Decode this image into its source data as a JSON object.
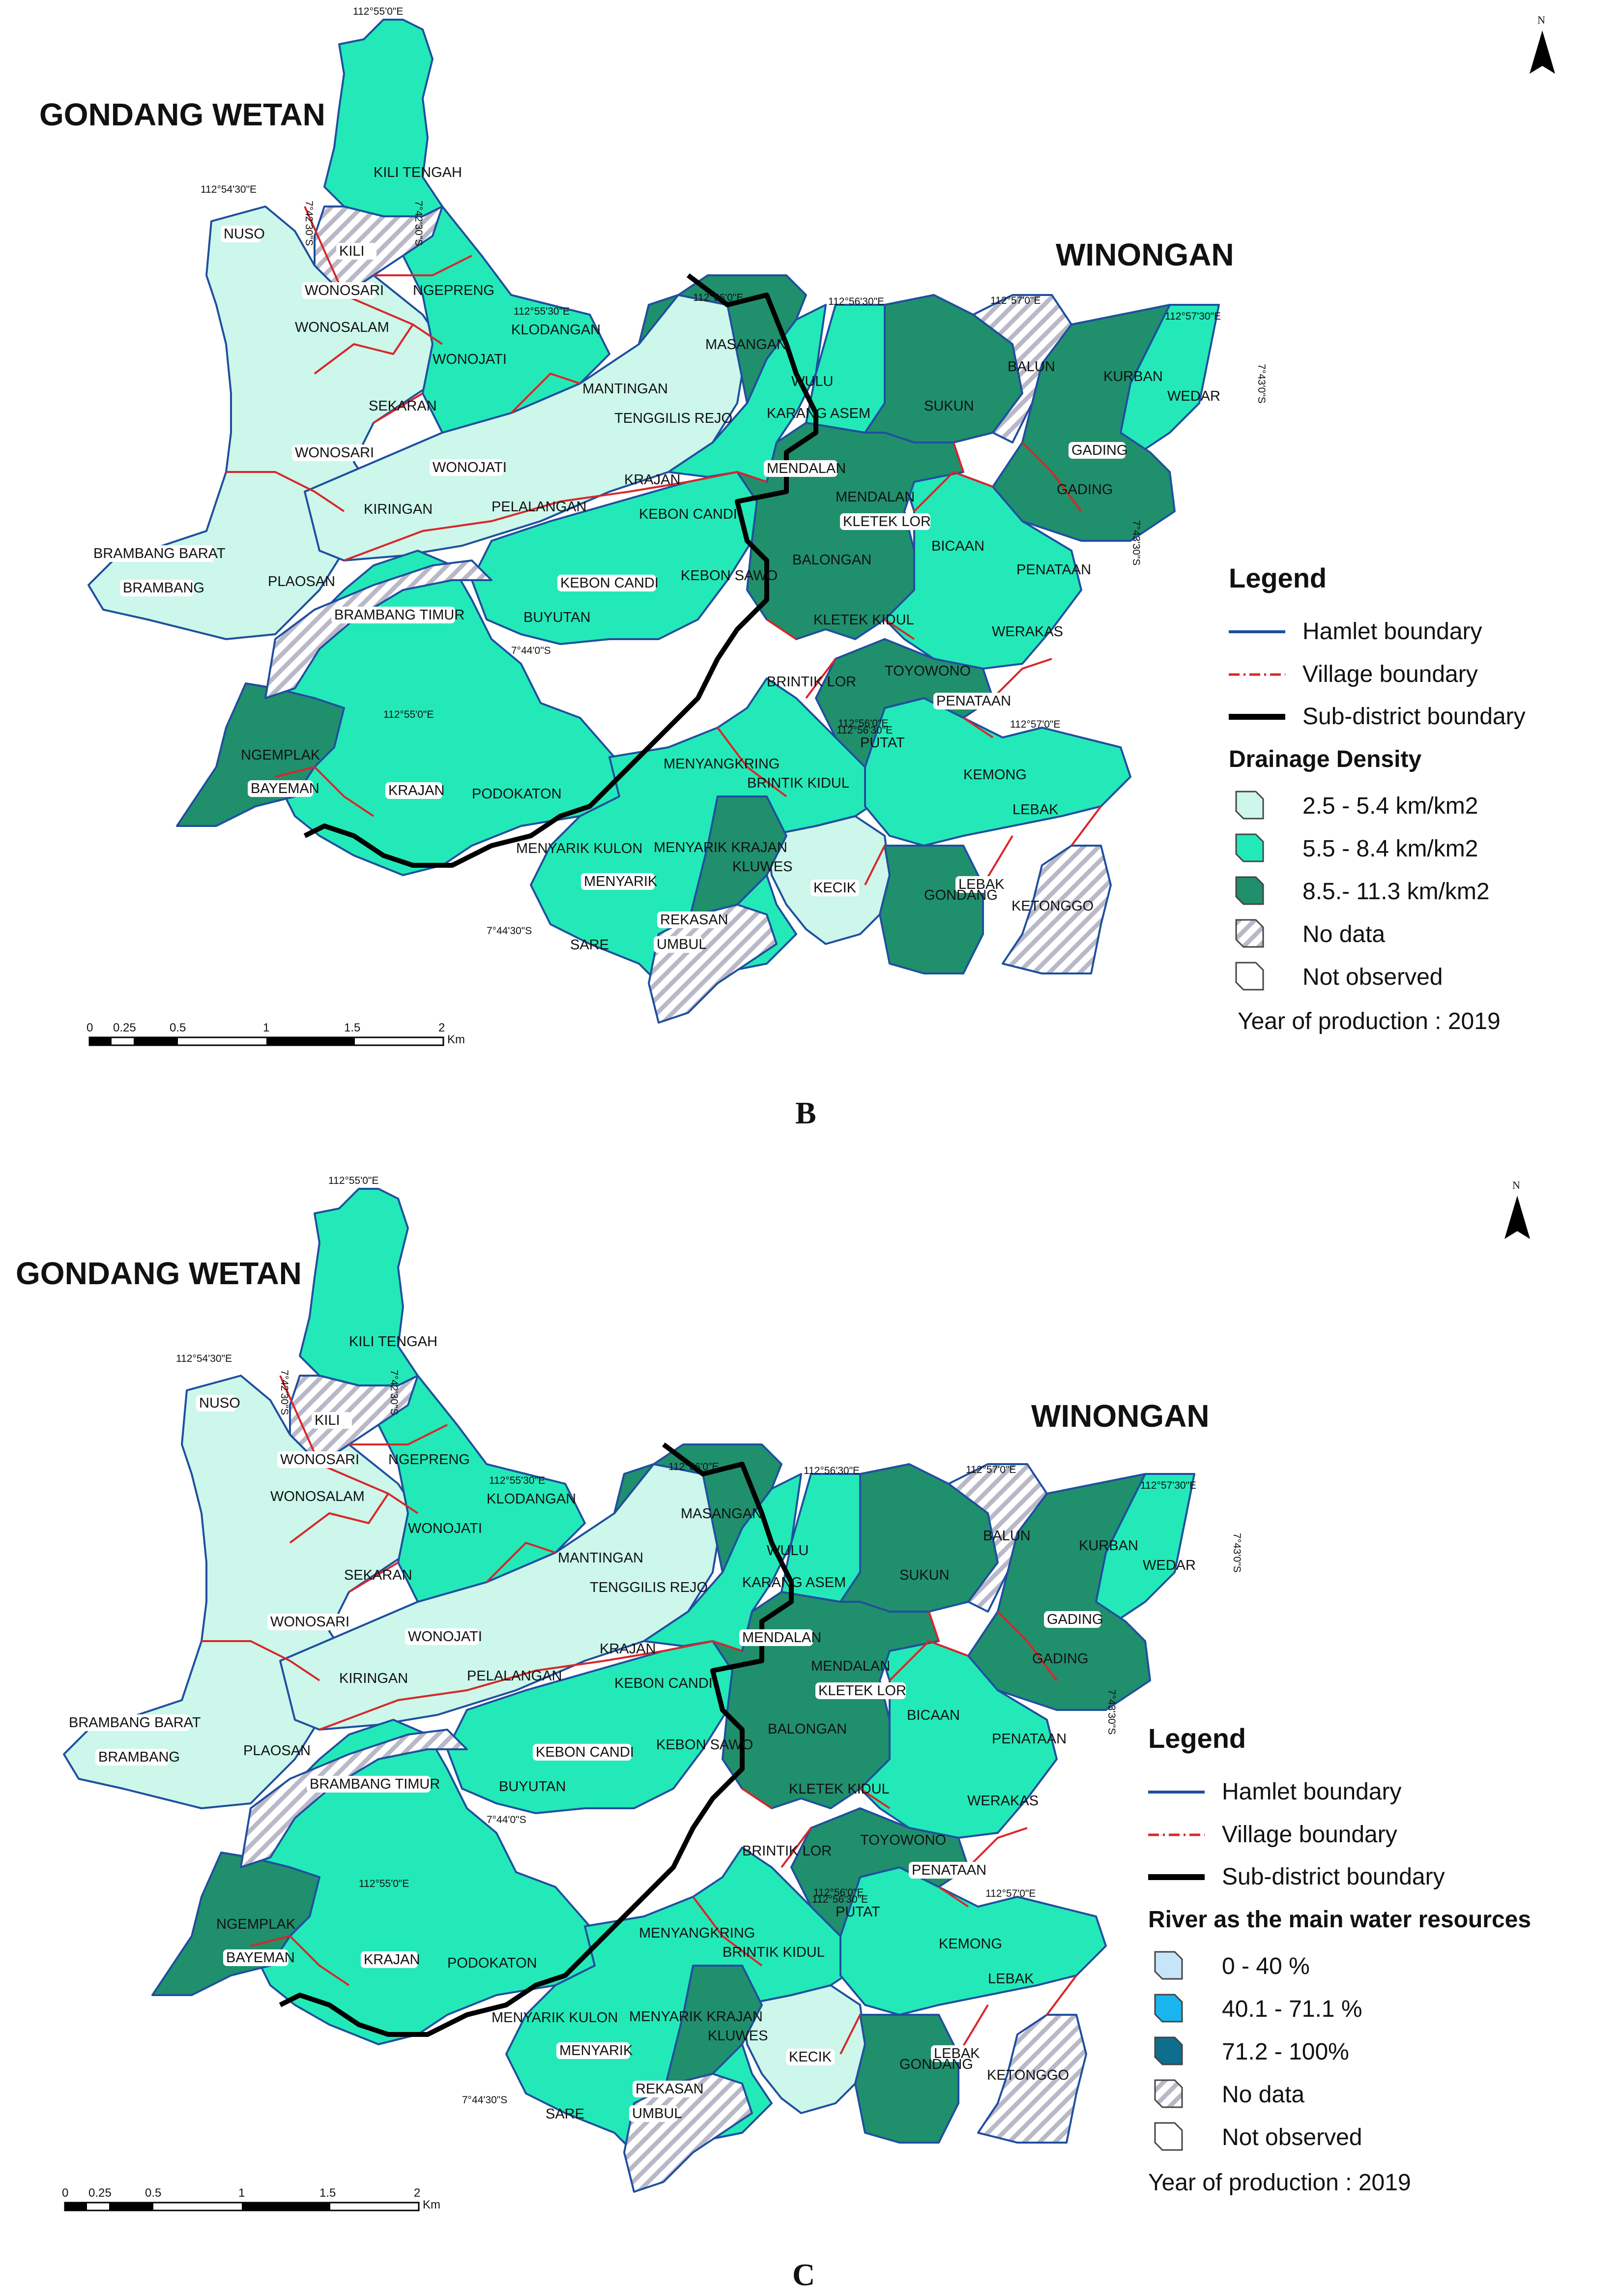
{
  "colors": {
    "low": "#ccf7ea",
    "mid": "#23e9b8",
    "high": "#208f6c",
    "low_c": "#c7e5f8",
    "mid_c": "#1ab4ee",
    "high_c": "#0f6e8e",
    "hamlet": "#1f4f9e",
    "village": "#d9262a",
    "subdistrict": "#000000"
  },
  "panels": [
    {
      "caption": "B",
      "north": "N",
      "regions": [
        "GONDANG WETAN",
        "WINONGAN"
      ],
      "legend": {
        "title": "Legend",
        "hamlet": "Hamlet boundary",
        "village": "Village boundary",
        "subdistrict": "Sub-district boundary",
        "subtitle": "Drainage Density",
        "classes": [
          "2.5 - 5.4 km/km2",
          "5.5 - 8.4 km/km2",
          "8.5.- 11.3  km/km2"
        ],
        "nodata": "No data",
        "notobserved": "Not observed",
        "year": "Year of production : 2019"
      },
      "scale": [
        "0",
        "0.25",
        "0.5",
        "1",
        "1.5",
        "2",
        "Km"
      ],
      "coords": [
        "112°55'0\"E",
        "112°54'30\"E",
        "7°42'30\"S",
        "7°42'30\"S",
        "112°55'30\"E",
        "112°56'0\"E",
        "112°56'30\"E",
        "112°57'0\"E",
        "112°57'30\"E",
        "7°43'0\"S",
        "7°43'30\"S",
        "7°44'0\"S",
        "112°55'0\"E",
        "112°56'0\"E",
        "112°56'30\"E",
        "112°57'0\"E",
        "7°44'30\"S"
      ],
      "labels": [
        "KILI TENGAH",
        "NUSO",
        "KILI",
        "WONOSARI",
        "NGEPRENG",
        "WONOSALAM",
        "KLODANGAN",
        "SEKARAN",
        "WONOJATI",
        "MANTINGAN",
        "TENGGILIS REJO",
        "MASANGAN",
        "KARANG ASEM",
        "WULU",
        "SUKUN",
        "BALUN",
        "KURBAN",
        "WEDAR",
        "GADING",
        "GADING",
        "WONOSARI",
        "WONOJATI",
        "KIRINGAN",
        "PELALANGAN",
        "KRAJAN",
        "MENDALAN",
        "KEBON CANDI",
        "MENDALAN",
        "KLETEK LOR",
        "BICAAN",
        "BRAMBANG BARAT",
        "BRAMBANG",
        "PLAOSAN",
        "KEBON CANDI",
        "BUYUTAN",
        "KEBON SAWO",
        "BALONGAN",
        "PENATAAN",
        "BRAMBANG TIMUR",
        "KLETEK KIDUL",
        "WERAKAS",
        "TOYOWONO",
        "BRINTIK LOR",
        "PENATAAN",
        "NGEMPLAK",
        "PUTAT",
        "KEMONG",
        "LEBAK",
        "BAYEMAN",
        "KRAJAN",
        "PODOKATON",
        "MENYANGKRING",
        "BRINTIK KIDUL",
        "MENYARIK KULON",
        "MENYARIK KRAJAN",
        "LEBAK",
        "MENYARIK",
        "KLUWES",
        "KECIK",
        "GONDANG",
        "KETONGGO",
        "SARE",
        "REKASAN",
        "UMBUL"
      ]
    },
    {
      "caption": "C",
      "north": "N",
      "regions": [
        "GONDANG WETAN",
        "WINONGAN"
      ],
      "legend": {
        "title": "Legend",
        "hamlet": "Hamlet boundary",
        "village": "Village boundary",
        "subdistrict": "Sub-district boundary",
        "subtitle": "River as the main water resources",
        "classes": [
          "0 - 40 %",
          "40.1 - 71.1 %",
          "71.2 - 100%"
        ],
        "nodata": "No data",
        "notobserved": "Not observed",
        "year": "Year of production : 2019"
      },
      "scale": [
        "0",
        "0.25",
        "0.5",
        "1",
        "1.5",
        "2",
        "Km"
      ]
    }
  ]
}
